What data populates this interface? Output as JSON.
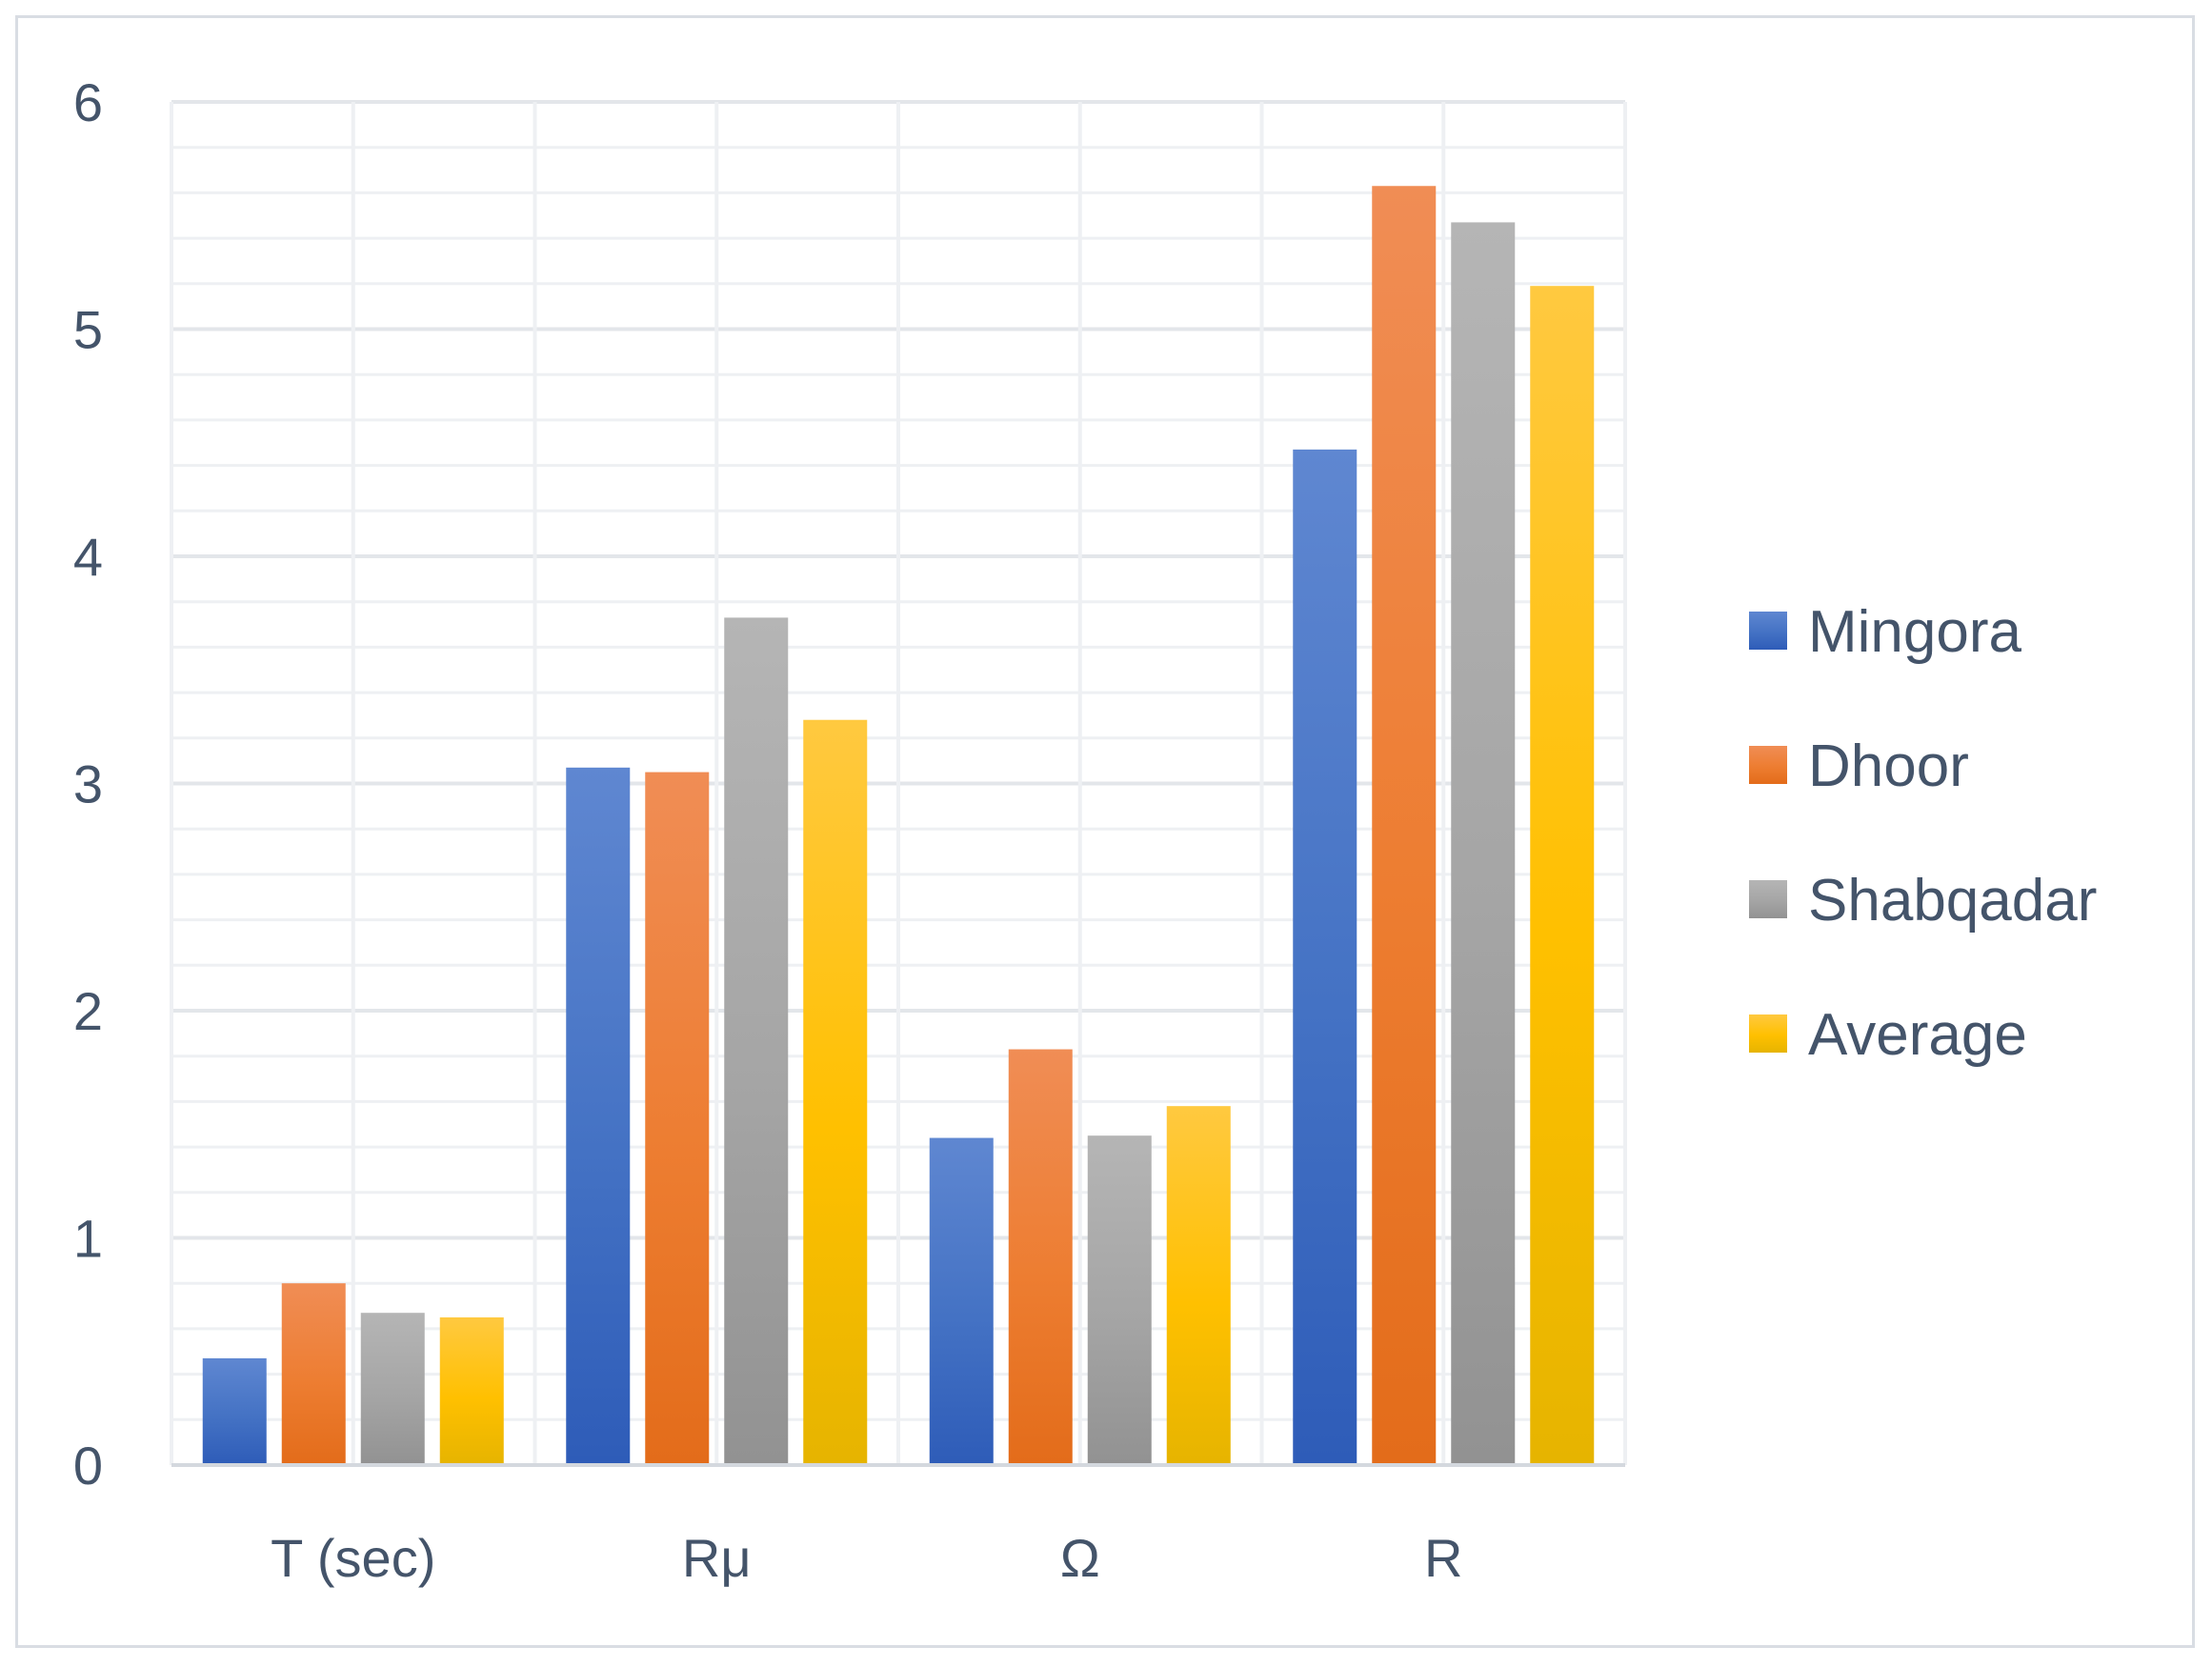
{
  "chart_data": {
    "type": "bar",
    "title": "",
    "xlabel": "",
    "ylabel": "",
    "categories": [
      "T (sec)",
      "Rμ",
      "Ω",
      "R"
    ],
    "series": [
      {
        "name": "Mingora",
        "values": [
          0.47,
          3.07,
          1.44,
          4.47
        ],
        "color": "#4472c4",
        "color_light": "#5f87d1",
        "color_dark": "#2e5cb8"
      },
      {
        "name": "Dhoor",
        "values": [
          0.8,
          3.05,
          1.83,
          5.63
        ],
        "color": "#ed7d31",
        "color_light": "#f08d55",
        "color_dark": "#e36c1a"
      },
      {
        "name": "Shabqadar",
        "values": [
          0.67,
          3.73,
          1.45,
          5.47
        ],
        "color": "#a5a5a5",
        "color_light": "#b5b5b5",
        "color_dark": "#929292"
      },
      {
        "name": "Average",
        "values": [
          0.65,
          3.28,
          1.58,
          5.19
        ],
        "color": "#ffc000",
        "color_light": "#ffc940",
        "color_dark": "#e6b400"
      }
    ],
    "ylim": [
      0,
      6
    ],
    "y_ticks": [
      0,
      1,
      2,
      3,
      4,
      5,
      6
    ],
    "grid": true,
    "legend_position": "right"
  }
}
